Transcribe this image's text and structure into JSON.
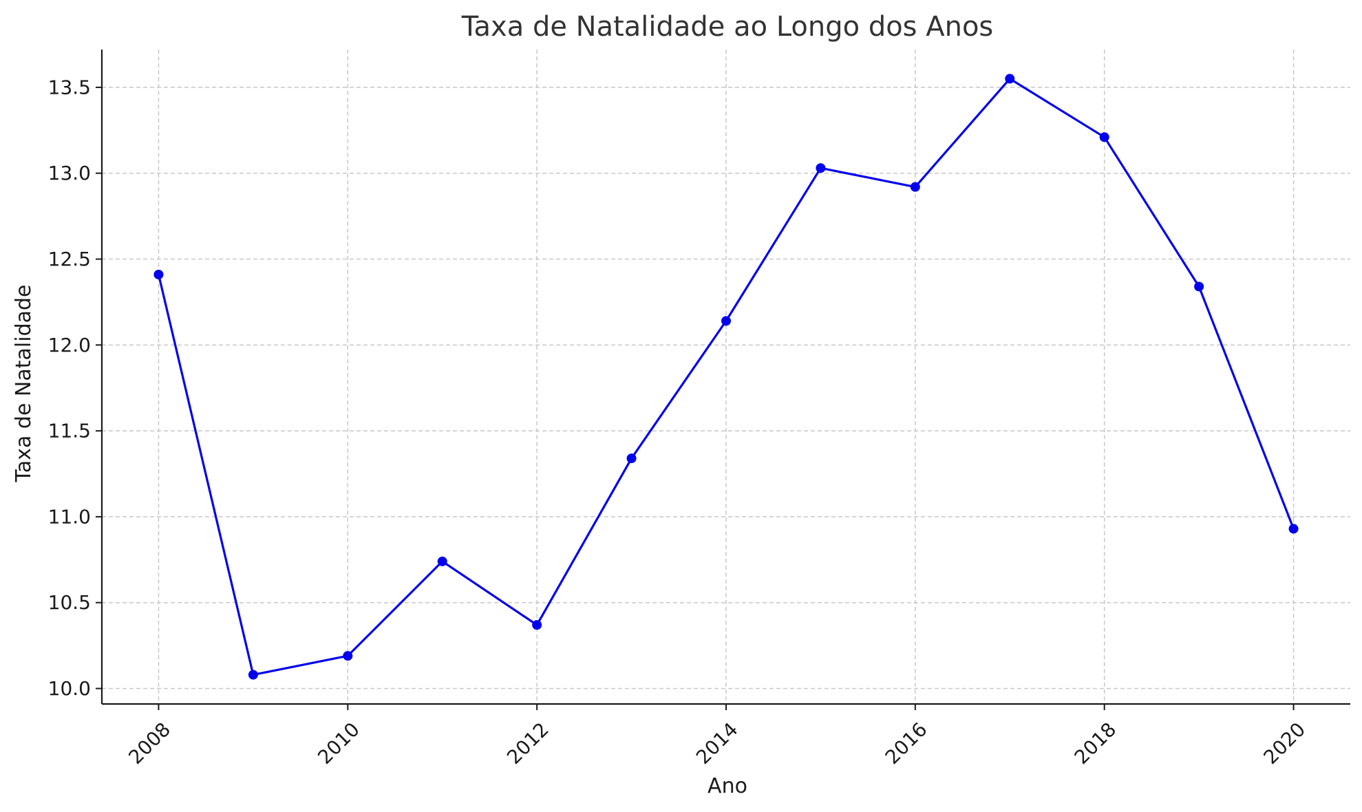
{
  "chart_data": {
    "type": "line",
    "title": "Taxa de Natalidade ao Longo dos Anos",
    "xlabel": "Ano",
    "ylabel": "Taxa de Natalidade",
    "x": [
      2008,
      2009,
      2010,
      2011,
      2012,
      2013,
      2014,
      2015,
      2016,
      2017,
      2018,
      2019,
      2020
    ],
    "series": [
      {
        "values": [
          12.41,
          10.08,
          10.19,
          10.74,
          10.37,
          11.34,
          12.14,
          13.03,
          12.92,
          13.55,
          13.21,
          12.34,
          10.93
        ],
        "color": "#0000ee",
        "marker": "circle"
      }
    ],
    "xlim": [
      2007.4,
      2020.6
    ],
    "ylim": [
      9.91,
      13.72
    ],
    "x_ticks": [
      "2008",
      "2010",
      "2012",
      "2014",
      "2016",
      "2018",
      "2020"
    ],
    "y_ticks": [
      "10.0",
      "10.5",
      "11.0",
      "11.5",
      "12.0",
      "12.5",
      "13.0",
      "13.5"
    ],
    "grid": true,
    "legend": "none"
  }
}
